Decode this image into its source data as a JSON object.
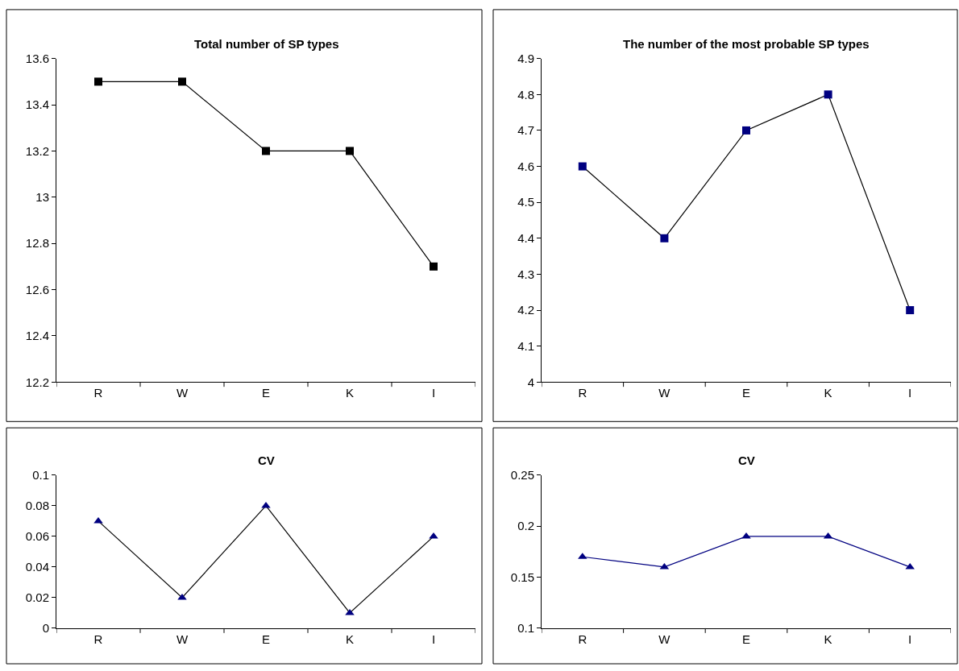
{
  "chart_data": [
    {
      "type": "line",
      "title": "Total number of SP types",
      "categories": [
        "R",
        "W",
        "E",
        "K",
        "I"
      ],
      "marker": "square",
      "series": [
        {
          "color": "#000000",
          "colors": [
            "#000000",
            "#000000",
            "#000000",
            "#000000",
            "#000000"
          ],
          "values": [
            13.5,
            13.5,
            13.2,
            13.2,
            12.7
          ]
        }
      ],
      "ylim": [
        12.2,
        13.6
      ],
      "yticks": [
        12.2,
        12.4,
        12.6,
        12.8,
        13,
        13.2,
        13.4,
        13.6
      ]
    },
    {
      "type": "line",
      "title": "The number of the most probable SP types",
      "categories": [
        "R",
        "W",
        "E",
        "K",
        "I"
      ],
      "marker": "square",
      "series": [
        {
          "color": "#000000",
          "colors": [
            "#000080",
            "#000080",
            "#000080",
            "#000080",
            "#000080"
          ],
          "values": [
            4.6,
            4.4,
            4.7,
            4.8,
            4.2
          ]
        }
      ],
      "ylim": [
        4,
        4.9
      ],
      "yticks": [
        4,
        4.1,
        4.2,
        4.3,
        4.4,
        4.5,
        4.6,
        4.7,
        4.8,
        4.9
      ]
    },
    {
      "type": "line",
      "title": "CV",
      "categories": [
        "R",
        "W",
        "E",
        "K",
        "I"
      ],
      "marker": "triangle",
      "series": [
        {
          "color": "#000000",
          "colors": [
            "#000080",
            "#000080",
            "#000080",
            "#000080",
            "#000080"
          ],
          "values": [
            0.07,
            0.02,
            0.08,
            0.01,
            0.06
          ]
        }
      ],
      "ylim": [
        0,
        0.1
      ],
      "yticks": [
        0,
        0.02,
        0.04,
        0.06,
        0.08,
        0.1
      ]
    },
    {
      "type": "line",
      "title": "CV",
      "categories": [
        "R",
        "W",
        "E",
        "K",
        "I"
      ],
      "marker": "triangle",
      "series": [
        {
          "color": "#000080",
          "colors": [
            "#000080",
            "#000080",
            "#000080",
            "#000080",
            "#000080"
          ],
          "values": [
            0.17,
            0.16,
            0.19,
            0.19,
            0.16
          ]
        }
      ],
      "ylim": [
        0.1,
        0.25
      ],
      "yticks": [
        0.1,
        0.15,
        0.2,
        0.25
      ]
    }
  ]
}
